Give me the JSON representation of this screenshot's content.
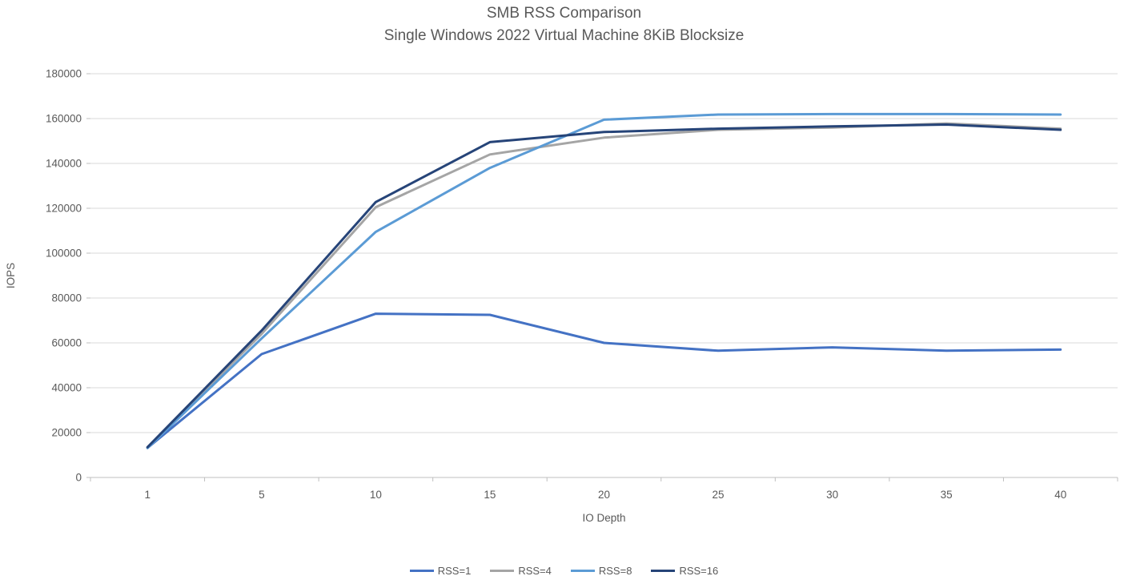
{
  "chart": {
    "title": "SMB RSS Comparison",
    "subtitle": "Single Windows 2022 Virtual Machine 8KiB Blocksize"
  },
  "chart_data": {
    "type": "line",
    "title": "SMB RSS Comparison",
    "subtitle": "Single Windows 2022 Virtual Machine 8KiB Blocksize",
    "xlabel": "IO Depth",
    "ylabel": "IOPS",
    "categories": [
      1,
      5,
      10,
      15,
      20,
      25,
      30,
      35,
      40
    ],
    "ylim": [
      0,
      180000
    ],
    "ytick_step": 20000,
    "grid": true,
    "legend_position": "bottom",
    "series": [
      {
        "name": "RSS=1",
        "color": "#4472C4",
        "values": [
          13200,
          55000,
          73000,
          72500,
          60000,
          56500,
          58000,
          56500,
          57000
        ]
      },
      {
        "name": "RSS=4",
        "color": "#A5A5A5",
        "values": [
          13400,
          64000,
          120500,
          144000,
          151500,
          155000,
          156000,
          157800,
          155500
        ]
      },
      {
        "name": "RSS=8",
        "color": "#5B9BD5",
        "values": [
          13100,
          62000,
          109500,
          138000,
          159500,
          161800,
          162000,
          162000,
          161800
        ]
      },
      {
        "name": "RSS=16",
        "color": "#264478",
        "values": [
          13500,
          65500,
          122800,
          149500,
          154000,
          155500,
          156500,
          157300,
          155000
        ]
      }
    ],
    "colors": {
      "label_text": "#595959",
      "gridline": "#d9d9d9",
      "axis_line": "#bfbfbf"
    }
  }
}
